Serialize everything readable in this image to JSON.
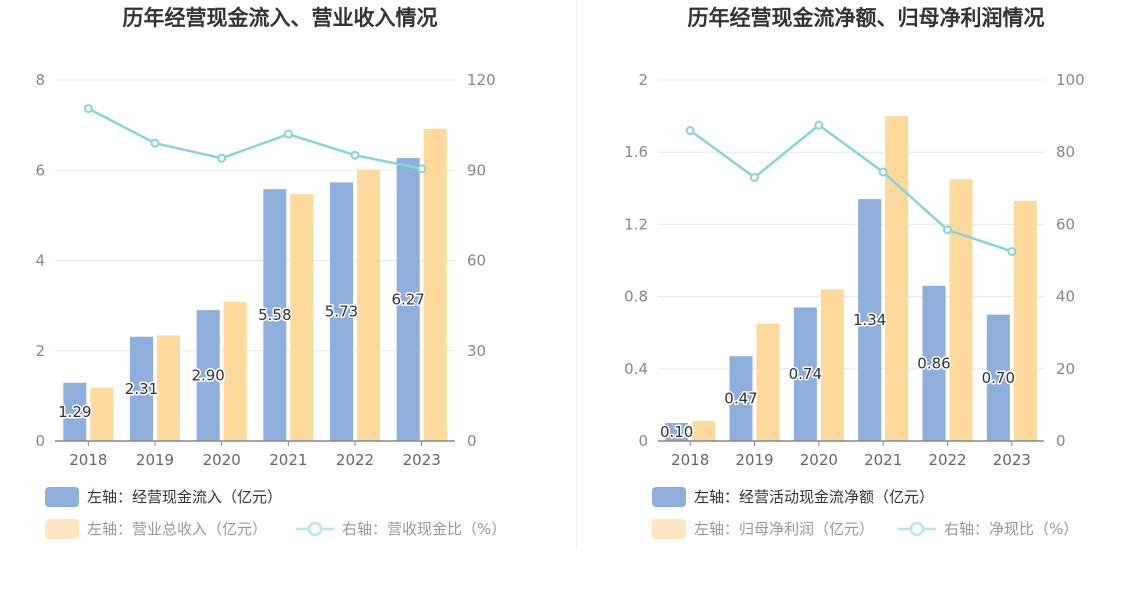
{
  "chart_data": [
    {
      "type": "bar",
      "title": "历年经营现金流入、营业收入情况",
      "categories": [
        "2018",
        "2019",
        "2020",
        "2021",
        "2022",
        "2023"
      ],
      "left_axis": {
        "ylim": [
          0,
          8
        ],
        "ticks": [
          "0",
          "2",
          "4",
          "6",
          "8"
        ]
      },
      "right_axis": {
        "ylim": [
          0,
          120
        ],
        "ticks": [
          "0",
          "30",
          "60",
          "90",
          "120"
        ]
      },
      "series": [
        {
          "name": "左轴：经营现金流入（亿元）",
          "axis": "left",
          "type": "bar",
          "color": "#8eaedb",
          "values": [
            1.29,
            2.31,
            2.9,
            5.58,
            5.73,
            6.27
          ],
          "labels": [
            "1.29",
            "2.31",
            "2.90",
            "5.58",
            "5.73",
            "6.27"
          ]
        },
        {
          "name": "左轴：营业总收入（亿元）",
          "axis": "left",
          "type": "bar",
          "color": "#fdd99b",
          "values": [
            1.18,
            2.34,
            3.08,
            5.47,
            6.01,
            6.92
          ]
        },
        {
          "name": "右轴：营收现金比（%）",
          "axis": "right",
          "type": "line",
          "color": "#87d4d9",
          "values": [
            110.5,
            99.0,
            94.0,
            102.0,
            95.0,
            90.5
          ]
        }
      ]
    },
    {
      "type": "bar",
      "title": "历年经营现金流净额、归母净利润情况",
      "categories": [
        "2018",
        "2019",
        "2020",
        "2021",
        "2022",
        "2023"
      ],
      "left_axis": {
        "ylim": [
          0,
          2
        ],
        "ticks": [
          "0",
          "0.4",
          "0.8",
          "1.2",
          "1.6",
          "2"
        ]
      },
      "right_axis": {
        "ylim": [
          0,
          100
        ],
        "ticks": [
          "0",
          "20",
          "40",
          "60",
          "80",
          "100"
        ]
      },
      "series": [
        {
          "name": "左轴：经营活动现金流净额（亿元）",
          "axis": "left",
          "type": "bar",
          "color": "#8eaedb",
          "values": [
            0.1,
            0.47,
            0.74,
            1.34,
            0.86,
            0.7
          ],
          "labels": [
            "0.10",
            "0.47",
            "0.74",
            "1.34",
            "0.86",
            "0.70"
          ]
        },
        {
          "name": "左轴：归母净利润（亿元）",
          "axis": "left",
          "type": "bar",
          "color": "#fdd99b",
          "values": [
            0.11,
            0.65,
            0.84,
            1.8,
            1.45,
            1.33
          ]
        },
        {
          "name": "右轴：净现比（%）",
          "axis": "right",
          "type": "line",
          "color": "#87d4d9",
          "values": [
            86.0,
            73.0,
            87.5,
            74.5,
            58.5,
            52.5
          ]
        }
      ]
    }
  ]
}
